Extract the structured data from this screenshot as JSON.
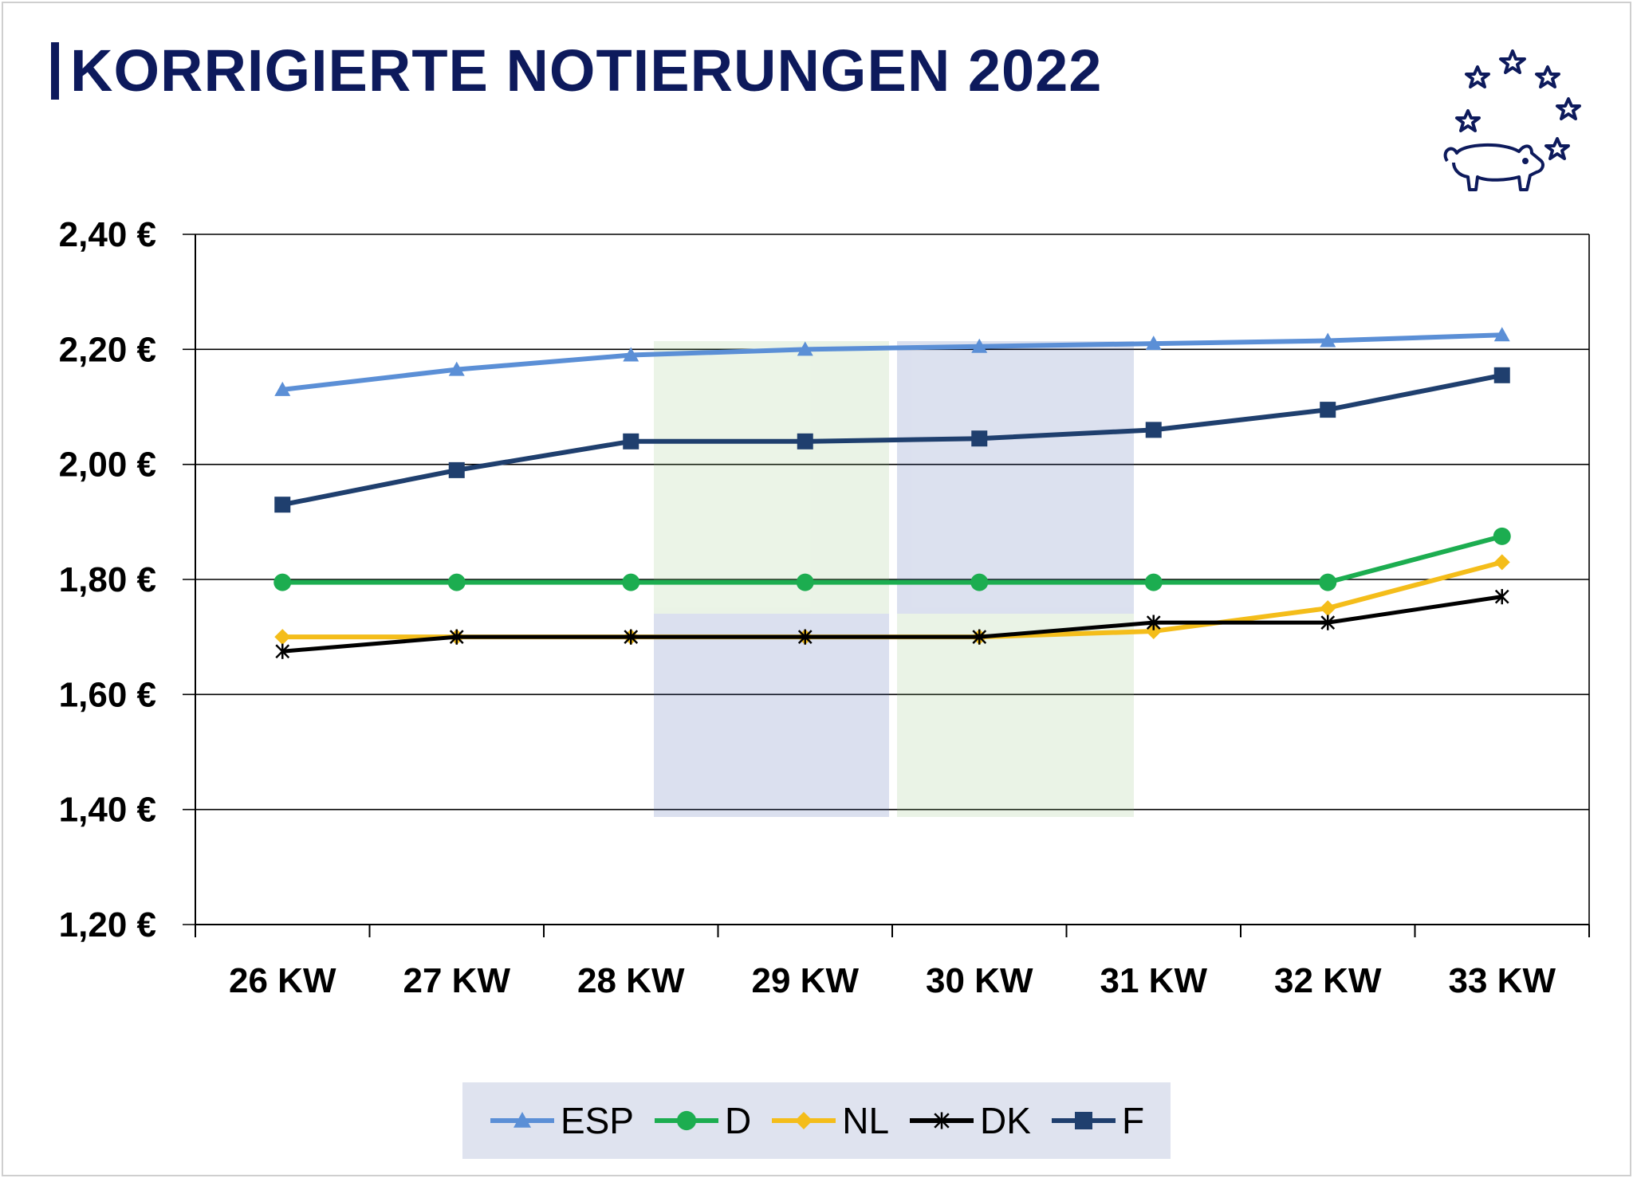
{
  "title": "KORRIGIERTE NOTIERUNGEN 2022",
  "logo_icon": "pig-with-stars-icon",
  "colors": {
    "title": "#0d1a5c",
    "grid": "#000000",
    "legend_bg": "#dfe3ef"
  },
  "chart_data": {
    "type": "line",
    "title": "KORRIGIERTE NOTIERUNGEN 2022",
    "xlabel": "",
    "ylabel": "",
    "categories": [
      "26 KW",
      "27 KW",
      "28 KW",
      "29 KW",
      "30 KW",
      "31 KW",
      "32 KW",
      "33 KW"
    ],
    "ylim": [
      1.2,
      2.4
    ],
    "yticks": [
      "1,20 €",
      "1,40 €",
      "1,60 €",
      "1,80 €",
      "2,00 €",
      "2,20 €",
      "2,40 €"
    ],
    "ytick_values": [
      1.2,
      1.4,
      1.6,
      1.8,
      2.0,
      2.2,
      2.4
    ],
    "grid": true,
    "legend_position": "bottom",
    "series": [
      {
        "name": "ESP",
        "color": "#5b8fd6",
        "marker": "triangle",
        "values": [
          2.13,
          2.165,
          2.19,
          2.2,
          2.205,
          2.21,
          2.215,
          2.225
        ]
      },
      {
        "name": "D",
        "color": "#1cad50",
        "marker": "circle",
        "values": [
          1.795,
          1.795,
          1.795,
          1.795,
          1.795,
          1.795,
          1.795,
          1.875
        ]
      },
      {
        "name": "NL",
        "color": "#f4bd1a",
        "marker": "diamond",
        "values": [
          1.7,
          1.7,
          1.7,
          1.7,
          1.7,
          1.71,
          1.75,
          1.83
        ]
      },
      {
        "name": "DK",
        "color": "#000000",
        "marker": "star",
        "values": [
          1.675,
          1.7,
          1.7,
          1.7,
          1.7,
          1.725,
          1.725,
          1.77
        ]
      },
      {
        "name": "F",
        "color": "#1f3f6e",
        "marker": "square",
        "values": [
          1.93,
          1.99,
          2.04,
          2.04,
          2.045,
          2.06,
          2.095,
          2.155
        ]
      }
    ]
  }
}
